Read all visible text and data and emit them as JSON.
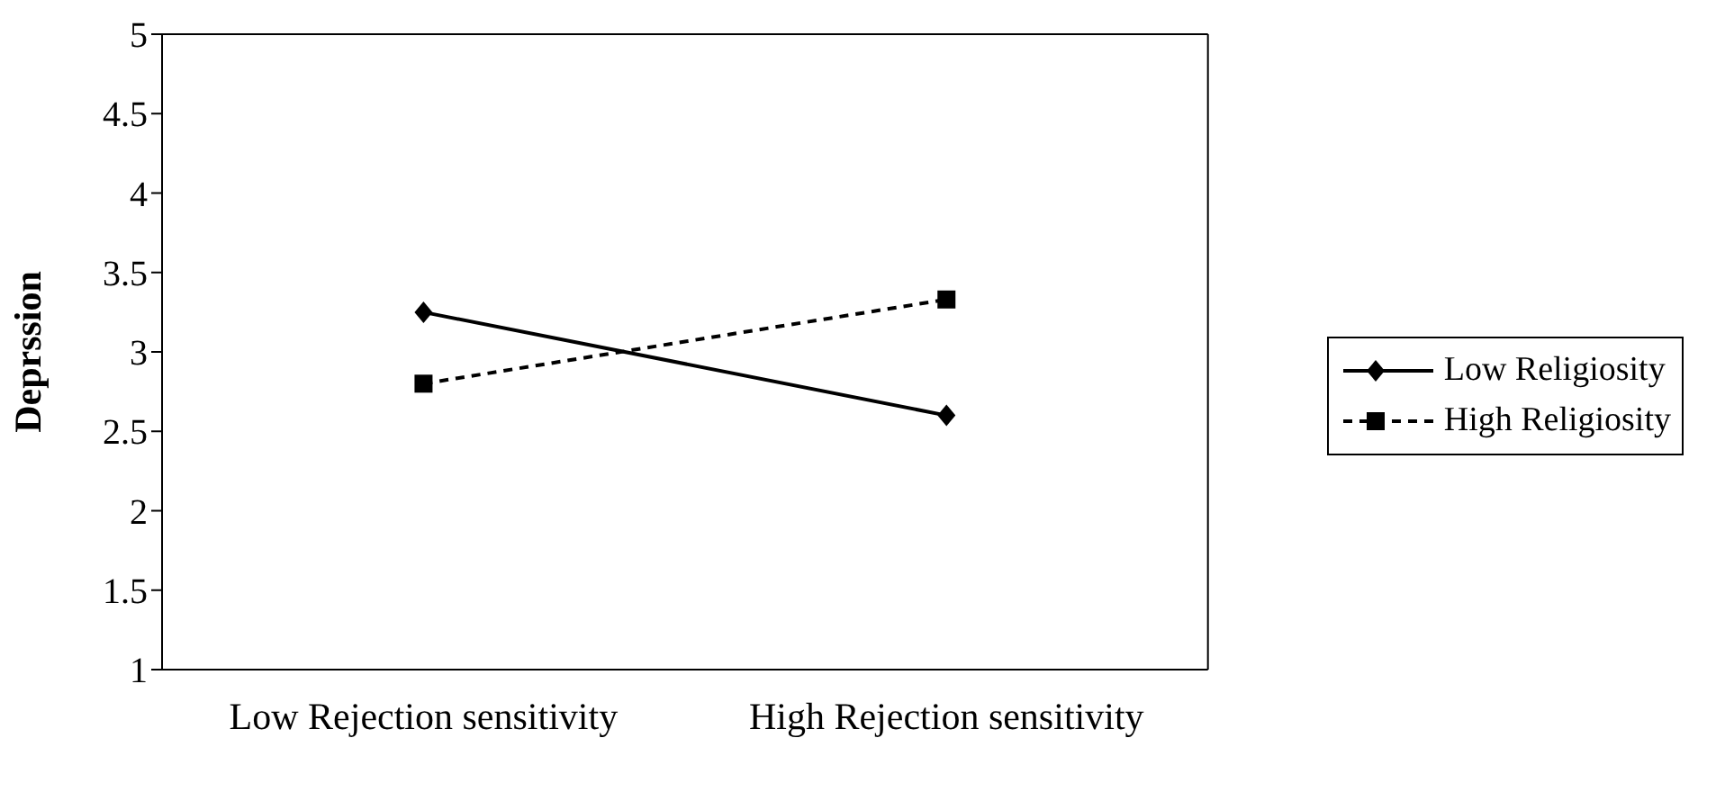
{
  "chart_data": {
    "type": "line",
    "ylabel": "Deprssion",
    "categories": [
      "Low Rejection sensitivity",
      "High Rejection sensitivity"
    ],
    "series": [
      {
        "name": "Low Religiosity",
        "color": "#000000",
        "values": [
          3.25,
          2.6
        ],
        "marker": "diamond",
        "line_style": "solid"
      },
      {
        "name": "High Religiosity",
        "color": "#000000",
        "values": [
          2.8,
          3.33
        ],
        "marker": "square",
        "line_style": "dashed"
      }
    ],
    "ylim": [
      1,
      5
    ],
    "yticks": [
      1,
      1.5,
      2,
      2.5,
      3,
      3.5,
      4,
      4.5,
      5
    ],
    "grid": false,
    "legend": "right"
  }
}
